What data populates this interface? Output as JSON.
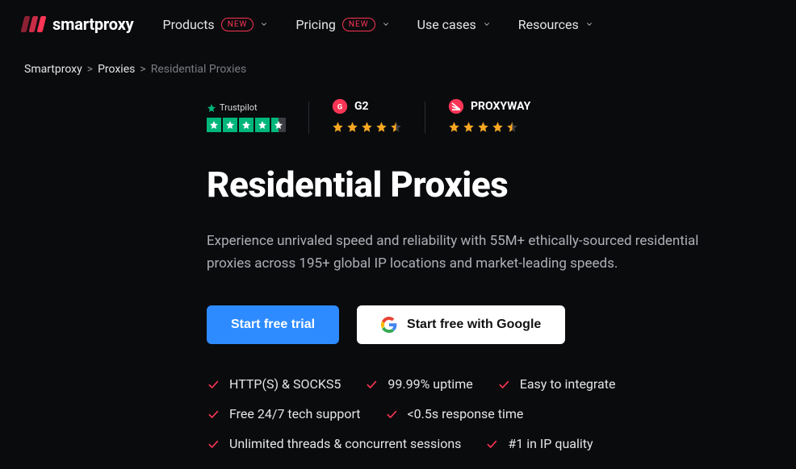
{
  "brand": {
    "name": "smartproxy"
  },
  "nav": [
    {
      "label": "Products",
      "badge": "NEW"
    },
    {
      "label": "Pricing",
      "badge": "NEW"
    },
    {
      "label": "Use cases",
      "badge": null
    },
    {
      "label": "Resources",
      "badge": null
    }
  ],
  "breadcrumb": {
    "items": [
      "Smartproxy",
      "Proxies"
    ],
    "current": "Residential Proxies"
  },
  "trust": {
    "trustpilot": {
      "label": "Trustpilot",
      "stars": 4.5,
      "brand_color": "#00b67a"
    },
    "g2": {
      "label": "G2",
      "stars": 4.5,
      "brand_color": "#fa3555"
    },
    "proxyway": {
      "label": "PROXYWAY",
      "stars": 4.5,
      "brand_color": "#fa3555"
    },
    "star_color": "#f5a623"
  },
  "hero": {
    "title": "Residential Proxies",
    "subtitle": "Experience unrivaled speed and reliability with 55M+ ethically-sourced residential proxies across 195+ global IP locations and market-leading speeds."
  },
  "cta": {
    "primary": "Start free trial",
    "google": "Start free with Google",
    "primary_bg": "#2e8bff",
    "google_bg": "#ffffff"
  },
  "features": [
    [
      "HTTP(S) & SOCKS5",
      "99.99% uptime",
      "Easy to integrate"
    ],
    [
      "Free 24/7 tech support",
      "<0.5s response time"
    ],
    [
      "Unlimited threads & concurrent sessions",
      "#1 in IP quality"
    ]
  ],
  "colors": {
    "bg": "#0a0b0d",
    "accent": "#fa3555",
    "tick": "#fa3555",
    "text_muted": "#aeb0b7"
  }
}
